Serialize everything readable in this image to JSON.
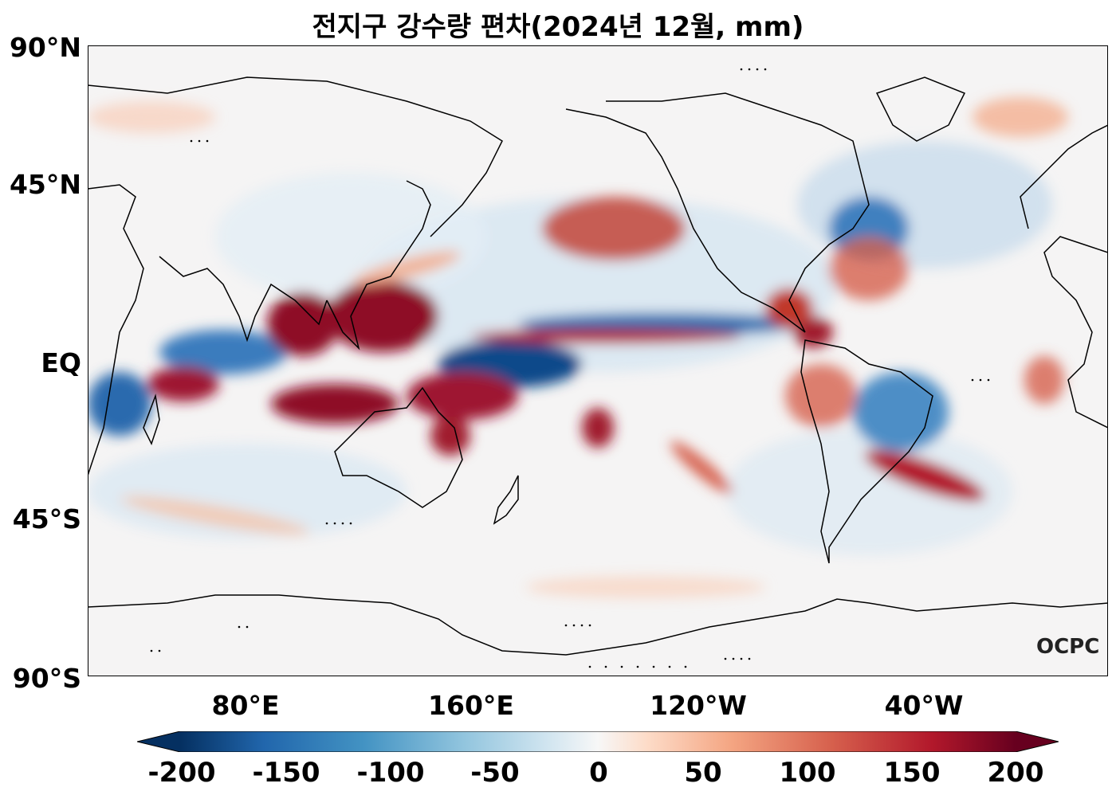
{
  "title": "전지구 강수량 편차(2024년 12월, mm)",
  "lat_labels": [
    "90°N",
    "45°N",
    "EQ",
    "45°S",
    "90°S"
  ],
  "lon_labels": [
    "80°E",
    "160°E",
    "120°W",
    "40°W"
  ],
  "colorbar": {
    "ticks": [
      "-200",
      "-150",
      "-100",
      "-50",
      "0",
      "50",
      "100",
      "150",
      "200"
    ],
    "min": -200,
    "max": 200,
    "colors": [
      "#053061",
      "#2166ac",
      "#4393c3",
      "#92c5de",
      "#d1e5f0",
      "#f7f7f7",
      "#fddbc7",
      "#f4a582",
      "#d6604d",
      "#b2182b",
      "#67001f"
    ]
  },
  "logo": "OCPC"
}
